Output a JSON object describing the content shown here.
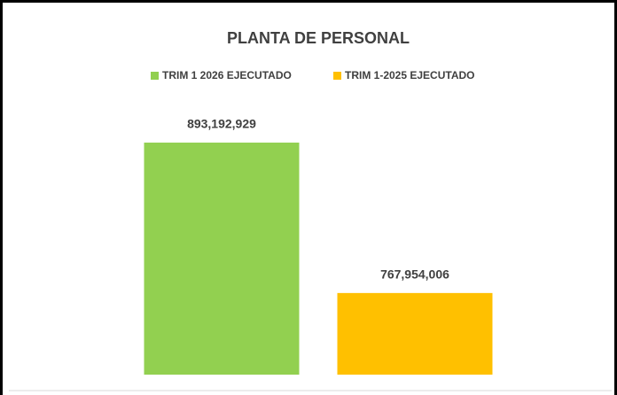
{
  "chart_data": {
    "type": "bar",
    "title": "PLANTA DE PERSONAL",
    "categories": [
      null
    ],
    "series": [
      {
        "name": "TRIM 1 2026 EJECUTADO",
        "color": "#92d050",
        "values": [
          893192929
        ],
        "value_labels": [
          "893,192,929"
        ]
      },
      {
        "name": "TRIM 1-2025 EJECUTADO",
        "color": "#ffc000",
        "values": [
          767954006
        ],
        "value_labels": [
          "767,954,006"
        ]
      }
    ],
    "ylim": [
      700000000,
      950000000
    ],
    "legend": "top"
  }
}
